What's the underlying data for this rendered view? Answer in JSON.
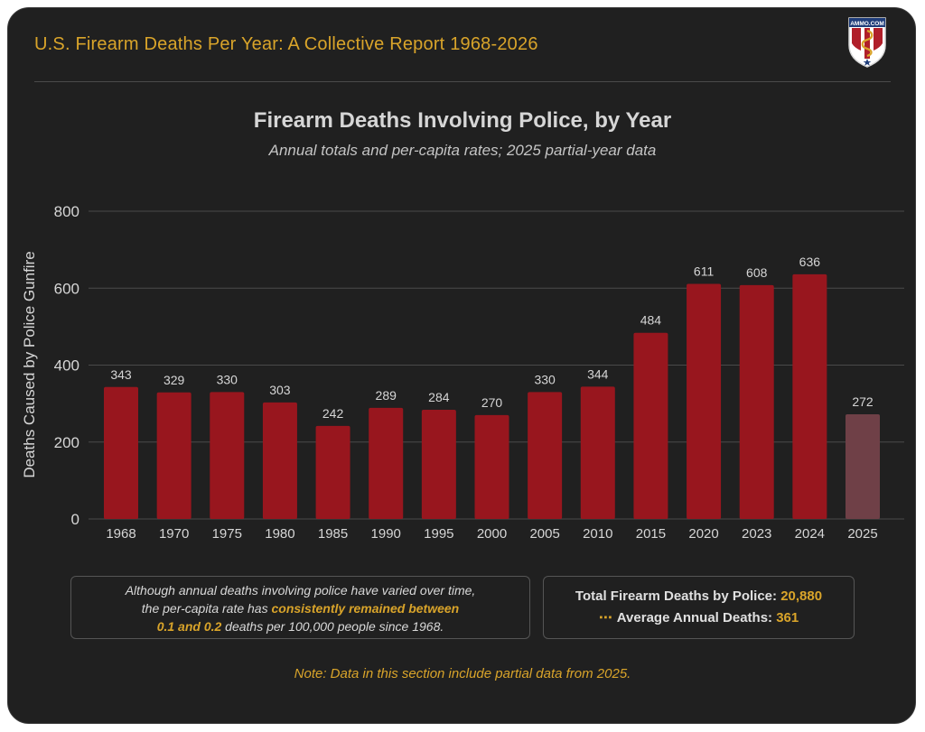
{
  "header": {
    "title": "U.S. Firearm Deaths Per Year: A Collective Report 1968-2026",
    "logo_text": "AMMO.COM"
  },
  "colors": {
    "background": "#202020",
    "bar": "#98161e",
    "bar_partial": "#6f4047",
    "accent": "#d9a42a",
    "grid": "#4a4a4a",
    "text": "#d6d6d6"
  },
  "chart_data": {
    "type": "bar",
    "title": "Firearm Deaths Involving Police, by Year",
    "subtitle": "Annual totals and per-capita rates; 2025 partial-year data",
    "xlabel": "",
    "ylabel": "Deaths Caused by Police Gunfire",
    "ylim": [
      0,
      800
    ],
    "yticks": [
      0,
      200,
      400,
      600,
      800
    ],
    "grid": true,
    "categories": [
      "1968",
      "1970",
      "1975",
      "1980",
      "1985",
      "1990",
      "1995",
      "2000",
      "2005",
      "2010",
      "2015",
      "2020",
      "2023",
      "2024",
      "2025"
    ],
    "values": [
      343,
      329,
      330,
      303,
      242,
      289,
      284,
      270,
      330,
      344,
      484,
      611,
      608,
      636,
      272
    ],
    "partial_categories": [
      "2025"
    ]
  },
  "note_box": {
    "line1": "Although annual deaths involving police have varied over time,",
    "line2_pre": "the per-capita rate has ",
    "line2_highlight": "consistently remained between",
    "line3_highlight": "0.1 and 0.2",
    "line3_post": " deaths per 100,000 people since 1968."
  },
  "stats": {
    "total_label": "Total Firearm Deaths by Police: ",
    "total_value": "20,880",
    "average_label": "Average Annual Deaths: ",
    "average_value": "361"
  },
  "footer": {
    "note": "Note: Data in this section include partial data from 2025."
  }
}
